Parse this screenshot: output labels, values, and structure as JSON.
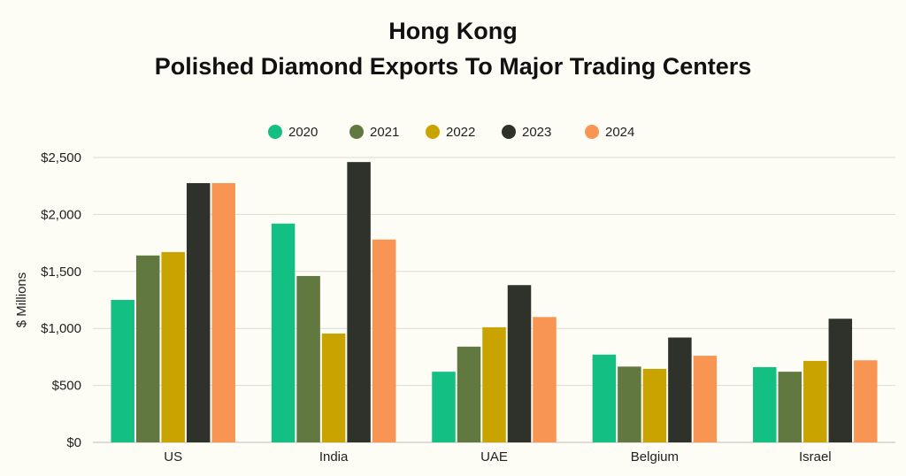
{
  "chart_data": {
    "type": "bar",
    "title": [
      "Hong Kong",
      "Polished Diamond Exports To Major Trading Centers"
    ],
    "ylabel": "$ Millions",
    "xlabel": "",
    "categories": [
      "US",
      "India",
      "UAE",
      "Belgium",
      "Israel"
    ],
    "series": [
      {
        "name": "2020",
        "color": "#14bf84",
        "values": [
          1250,
          1920,
          620,
          770,
          660
        ]
      },
      {
        "name": "2021",
        "color": "#617840",
        "values": [
          1640,
          1460,
          840,
          665,
          620
        ]
      },
      {
        "name": "2022",
        "color": "#c9a400",
        "values": [
          1670,
          955,
          1010,
          645,
          715
        ]
      },
      {
        "name": "2023",
        "color": "#2f312b",
        "values": [
          2275,
          2460,
          1380,
          920,
          1085
        ]
      },
      {
        "name": "2024",
        "color": "#f99552",
        "values": [
          2275,
          1780,
          1100,
          760,
          720
        ]
      }
    ],
    "ylim": [
      0,
      2500
    ],
    "yticks": [
      0,
      500,
      1000,
      1500,
      2000,
      2500
    ],
    "ytick_labels": [
      "$0",
      "$500",
      "$1,000",
      "$1,500",
      "$2,000",
      "$2,500"
    ],
    "grid": true,
    "legend": "top-center"
  }
}
